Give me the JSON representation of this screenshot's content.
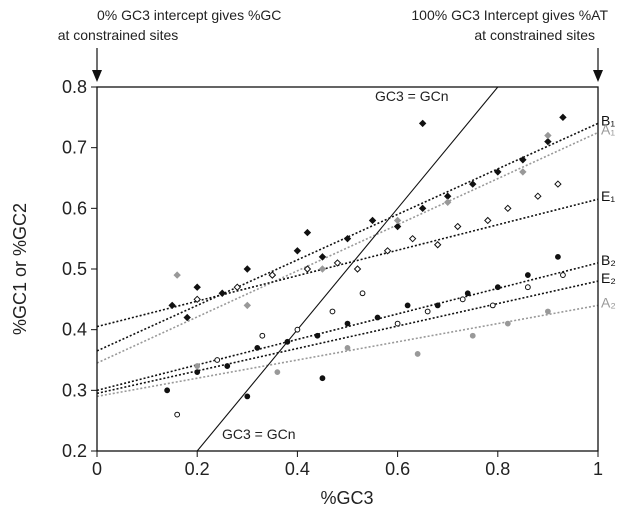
{
  "chart_data": {
    "type": "scatter",
    "xlabel": "%GC3",
    "ylabel": "%GC1 or %GC2",
    "annotations": [
      "0% GC3 intercept gives %GC",
      "at constrained sites",
      "100% GC3 Intercept gives %AT",
      "at constrained sites",
      "GC3 = GCn",
      "GC3 = GCn"
    ],
    "xlim": [
      0,
      1
    ],
    "ylim": [
      0.2,
      0.8
    ],
    "xticks": [
      0,
      0.2,
      0.4,
      0.6,
      0.8,
      1
    ],
    "yticks": [
      0.2,
      0.3,
      0.4,
      0.5,
      0.6,
      0.7,
      0.8
    ],
    "series": [
      {
        "marker": "diamond",
        "color": "#111",
        "fill": "#111",
        "x": [
          0.15,
          0.2,
          0.25,
          0.3,
          0.35,
          0.4,
          0.45,
          0.5,
          0.55,
          0.6,
          0.65,
          0.7,
          0.75,
          0.8,
          0.85,
          0.9,
          0.93,
          0.65,
          0.18,
          0.42
        ],
        "values": [
          0.44,
          0.47,
          0.46,
          0.5,
          0.49,
          0.53,
          0.52,
          0.55,
          0.58,
          0.57,
          0.6,
          0.62,
          0.64,
          0.66,
          0.68,
          0.71,
          0.75,
          0.74,
          0.42,
          0.56
        ]
      },
      {
        "marker": "diamond",
        "color": "#111",
        "fill": "#fff",
        "x": [
          0.2,
          0.28,
          0.35,
          0.42,
          0.48,
          0.52,
          0.58,
          0.63,
          0.68,
          0.72,
          0.78,
          0.82,
          0.88,
          0.92
        ],
        "values": [
          0.45,
          0.47,
          0.49,
          0.5,
          0.51,
          0.5,
          0.53,
          0.55,
          0.54,
          0.57,
          0.58,
          0.6,
          0.62,
          0.64
        ]
      },
      {
        "marker": "diamond",
        "color": "#999",
        "fill": "#999",
        "x": [
          0.16,
          0.3,
          0.45,
          0.6,
          0.7,
          0.85,
          0.9
        ],
        "values": [
          0.49,
          0.44,
          0.5,
          0.58,
          0.61,
          0.66,
          0.72
        ]
      },
      {
        "marker": "circle",
        "color": "#111",
        "fill": "#111",
        "x": [
          0.14,
          0.2,
          0.26,
          0.32,
          0.38,
          0.44,
          0.5,
          0.56,
          0.62,
          0.68,
          0.74,
          0.8,
          0.86,
          0.92,
          0.3,
          0.45
        ],
        "values": [
          0.3,
          0.33,
          0.34,
          0.37,
          0.38,
          0.39,
          0.41,
          0.42,
          0.44,
          0.44,
          0.46,
          0.47,
          0.49,
          0.52,
          0.29,
          0.32
        ]
      },
      {
        "marker": "circle",
        "color": "#111",
        "fill": "#fff",
        "x": [
          0.16,
          0.24,
          0.33,
          0.4,
          0.47,
          0.53,
          0.6,
          0.66,
          0.73,
          0.79,
          0.86,
          0.93
        ],
        "values": [
          0.26,
          0.35,
          0.39,
          0.4,
          0.43,
          0.46,
          0.41,
          0.43,
          0.45,
          0.44,
          0.47,
          0.49
        ]
      },
      {
        "marker": "circle",
        "color": "#999",
        "fill": "#999",
        "x": [
          0.2,
          0.36,
          0.5,
          0.64,
          0.75,
          0.82,
          0.9
        ],
        "values": [
          0.34,
          0.33,
          0.37,
          0.36,
          0.39,
          0.41,
          0.43
        ]
      }
    ],
    "lines": [
      {
        "label": "B₁",
        "x": [
          0,
          1
        ],
        "values": [
          0.365,
          0.74
        ],
        "color": "#111",
        "dash": true
      },
      {
        "label": "A₁",
        "x": [
          0,
          1
        ],
        "values": [
          0.345,
          0.725
        ],
        "color": "#999",
        "dash": true
      },
      {
        "label": "E₁",
        "x": [
          0,
          1
        ],
        "values": [
          0.405,
          0.615
        ],
        "color": "#111",
        "dash": true
      },
      {
        "label": "B₂",
        "x": [
          0,
          1
        ],
        "values": [
          0.3,
          0.51
        ],
        "color": "#111",
        "dash": true
      },
      {
        "label": "E₂",
        "x": [
          0,
          1
        ],
        "values": [
          0.295,
          0.48
        ],
        "color": "#111",
        "dash": true
      },
      {
        "label": "A₂",
        "x": [
          0,
          1
        ],
        "values": [
          0.29,
          0.44
        ],
        "color": "#999",
        "dash": true
      },
      {
        "x": [
          0.2,
          0.8
        ],
        "values": [
          0.2,
          0.8
        ],
        "color": "#111",
        "dash": false
      }
    ]
  }
}
